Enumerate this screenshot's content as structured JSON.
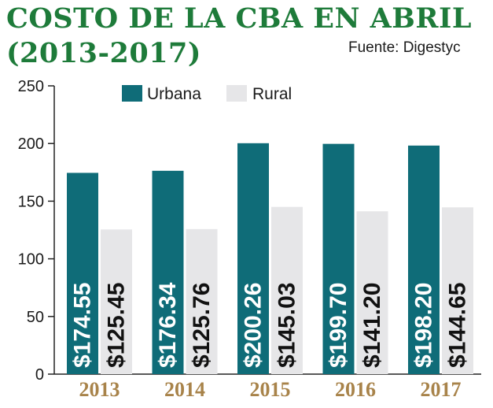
{
  "title_line1": "COSTO DE LA CBA EN ABRIL",
  "title_line2": "(2013-2017)",
  "source": "Fuente: Digestyc",
  "colors": {
    "title": "#1e7b3a",
    "urbana": "#0f6c78",
    "rural": "#e6e6e8",
    "year_label": "#a8834a",
    "urbana_label": "#ffffff",
    "rural_label": "#111111"
  },
  "chart_data": {
    "type": "bar",
    "categories": [
      "2013",
      "2014",
      "2015",
      "2016",
      "2017"
    ],
    "series": [
      {
        "name": "Urbana",
        "values": [
          174.55,
          176.34,
          200.26,
          199.7,
          198.2
        ],
        "labels": [
          "$174.55",
          "$176.34",
          "$200.26",
          "$199.70",
          "$198.20"
        ]
      },
      {
        "name": "Rural",
        "values": [
          125.45,
          125.76,
          145.03,
          141.2,
          144.65
        ],
        "labels": [
          "$125.45",
          "$125.76",
          "$145.03",
          "$141.20",
          "$144.65"
        ]
      }
    ],
    "ylim": [
      0,
      250
    ],
    "yticks": [
      0,
      50,
      100,
      150,
      200,
      250
    ],
    "legend_position": "top",
    "grid": false
  }
}
